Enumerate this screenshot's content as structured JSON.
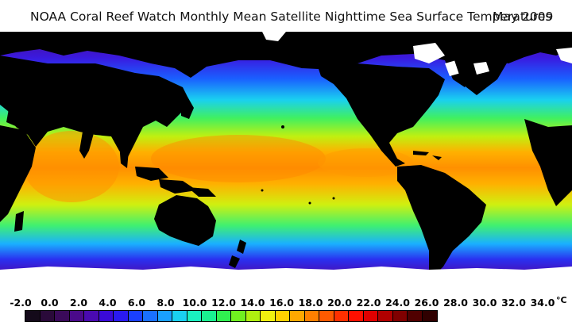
{
  "title": {
    "main": "NOAA Coral Reef Watch Monthly Mean Satellite Nighttime Sea Surface Temperatures",
    "date": "May 2009"
  },
  "legend": {
    "unit": "°C",
    "ticks": [
      "-2.0",
      "0.0",
      "2.0",
      "4.0",
      "6.0",
      "8.0",
      "10.0",
      "12.0",
      "14.0",
      "16.0",
      "18.0",
      "20.0",
      "22.0",
      "24.0",
      "26.0",
      "28.0",
      "30.0",
      "32.0",
      "34.0"
    ],
    "colors": [
      "#140a1a",
      "#2a0a3a",
      "#3a0a5a",
      "#4a0a8a",
      "#4a0ab0",
      "#3a0ad8",
      "#2a1af0",
      "#1a40ff",
      "#1a70ff",
      "#1aa0ff",
      "#1ad0f0",
      "#1af0c0",
      "#1af090",
      "#30f050",
      "#70f020",
      "#b0f010",
      "#f0f010",
      "#ffd000",
      "#ffa800",
      "#ff8000",
      "#ff5a00",
      "#ff3000",
      "#ff1000",
      "#e00000",
      "#b00000",
      "#800000",
      "#500000",
      "#300000"
    ]
  }
}
